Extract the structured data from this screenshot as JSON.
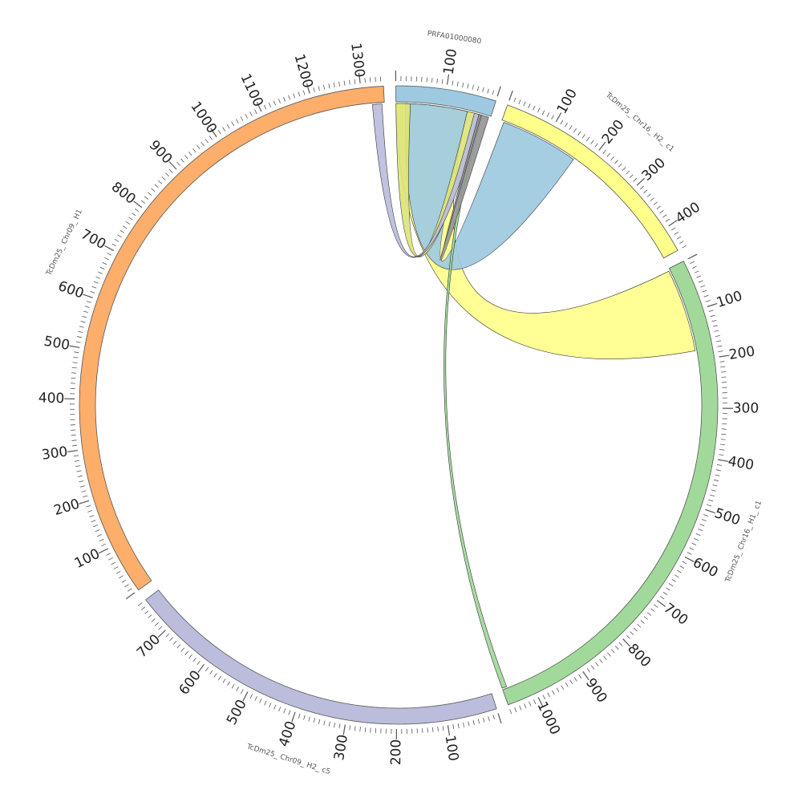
{
  "colors": {
    "PRFA01000080": "#9ecae1",
    "Chr16_H2_c1": "#ffff8c",
    "Chr16_H1_c1": "#a1d99b",
    "Chr09_H2_c5": "#bcbddc",
    "Chr09_H1": "#fdae6b",
    "overlap": "#dce47a",
    "grey_link": "#969696"
  },
  "segments": [
    {
      "id": "prfa",
      "name": "PRFA01000080",
      "length": 200,
      "color_key": "PRFA01000080",
      "labels": [
        100
      ]
    },
    {
      "id": "c16h2",
      "name": "TcDm25_ Chr16_ H2_ c1",
      "length": 450,
      "color_key": "Chr16_H2_c1",
      "labels": [
        100,
        200,
        300,
        400
      ]
    },
    {
      "id": "c16h1",
      "name": "TcDm25_ Chr16_ H1_ c1",
      "length": 1060,
      "color_key": "Chr16_H1_c1",
      "labels": [
        100,
        200,
        300,
        400,
        500,
        600,
        700,
        800,
        900,
        1000
      ]
    },
    {
      "id": "c09h2",
      "name": "TcDm25_ Chr09_ H2_ c5",
      "length": 770,
      "color_key": "Chr09_H2_c5",
      "labels": [
        100,
        200,
        300,
        400,
        500,
        600,
        700
      ]
    },
    {
      "id": "c09h1",
      "name": "TcDm25_ Chr09_ H1",
      "length": 1345,
      "color_key": "Chr09_H1",
      "labels": [
        100,
        200,
        300,
        400,
        500,
        600,
        700,
        800,
        900,
        1000,
        1100,
        1200,
        1300
      ]
    }
  ],
  "links": [
    {
      "name": "prfa-c16h1",
      "color_key": "Chr16_H2_c1",
      "a": [
        "prfa",
        0,
        150
      ],
      "b": [
        "c16h1",
        5,
        180
      ]
    },
    {
      "name": "prfa-c16h2",
      "color_key": "PRFA01000080",
      "a": [
        "prfa",
        20,
        150
      ],
      "b": [
        "c16h2",
        5,
        170
      ]
    },
    {
      "name": "prfa-self",
      "color_key": "overlap",
      "a": [
        "prfa",
        0,
        30
      ],
      "b": [
        "prfa",
        150,
        175
      ]
    },
    {
      "name": "prfa-c09h1",
      "color_key": "Chr09_H2_c5",
      "a": [
        "prfa",
        165,
        180
      ],
      "b": [
        "c09h1",
        1320,
        1340
      ]
    },
    {
      "name": "prfa-c16h1-thin",
      "color_key": "Chr16_H1_c1",
      "a": [
        "prfa",
        175,
        182
      ],
      "b": [
        "c16h1",
        1050,
        1060
      ]
    },
    {
      "name": "prfa-grey",
      "color_key": "grey_link",
      "a": [
        "prfa",
        180,
        196
      ],
      "b": [
        "prfa",
        175,
        180
      ]
    }
  ]
}
